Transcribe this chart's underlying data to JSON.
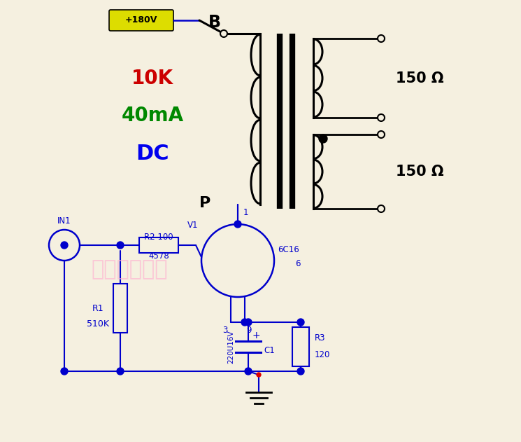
{
  "bg_color": "#F5F0E0",
  "circuit_color": "#0000CC",
  "black": "#000000",
  "red_label": "#CC0000",
  "green_label": "#008800",
  "blue_label": "#0000EE",
  "watermark_color": "#FFB0D0",
  "voltage_label": "+180V",
  "voltage_box_fill": "#DDDD00",
  "label_10K": "10K",
  "label_40mA": "40mA",
  "label_DC": "DC",
  "label_B": "B",
  "label_P": "P",
  "label_150_1": "150 Ω",
  "label_150_2": "150 Ω",
  "label_R1": "R1",
  "label_R1_val": "510K",
  "label_R2": "R2",
  "label_R2_val": "100",
  "label_R3": "R3",
  "label_R3_val": "120",
  "label_C1": "C1",
  "label_C1_val": "220U16V",
  "label_V1": "V1",
  "label_tube": "6C16",
  "label_IN1": "IN1",
  "label_4578": "4578",
  "label_1": "1",
  "label_3": "3",
  "label_6": "6",
  "label_9": "9",
  "watermark": "漳州鸿歌音响"
}
